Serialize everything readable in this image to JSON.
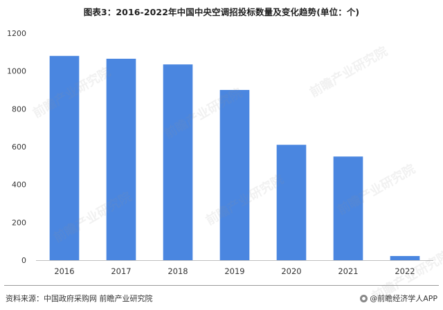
{
  "title": "图表3：2016-2022年中国中央空调招投标数量及变化趋势(单位：个)",
  "footer": {
    "source": "资料来源：中国政府采购网 前瞻产业研究院",
    "brand": "@前瞻经济学人APP"
  },
  "watermark": "前瞻产业研究院",
  "colors": {
    "bar": "#4a86e0",
    "axis": "#bfbfbf"
  },
  "chart_data": {
    "type": "bar",
    "title": "图表3：2016-2022年中国中央空调招投标数量及变化趋势(单位：个)",
    "categories": [
      "2016",
      "2017",
      "2018",
      "2019",
      "2020",
      "2021",
      "2022"
    ],
    "values": [
      1080,
      1065,
      1035,
      900,
      610,
      548,
      22
    ],
    "ylim": [
      0,
      1200
    ],
    "yticks": [
      0,
      200,
      400,
      600,
      800,
      1000,
      1200
    ],
    "xlabel": "",
    "ylabel": "",
    "grid": false,
    "legend": "none"
  }
}
